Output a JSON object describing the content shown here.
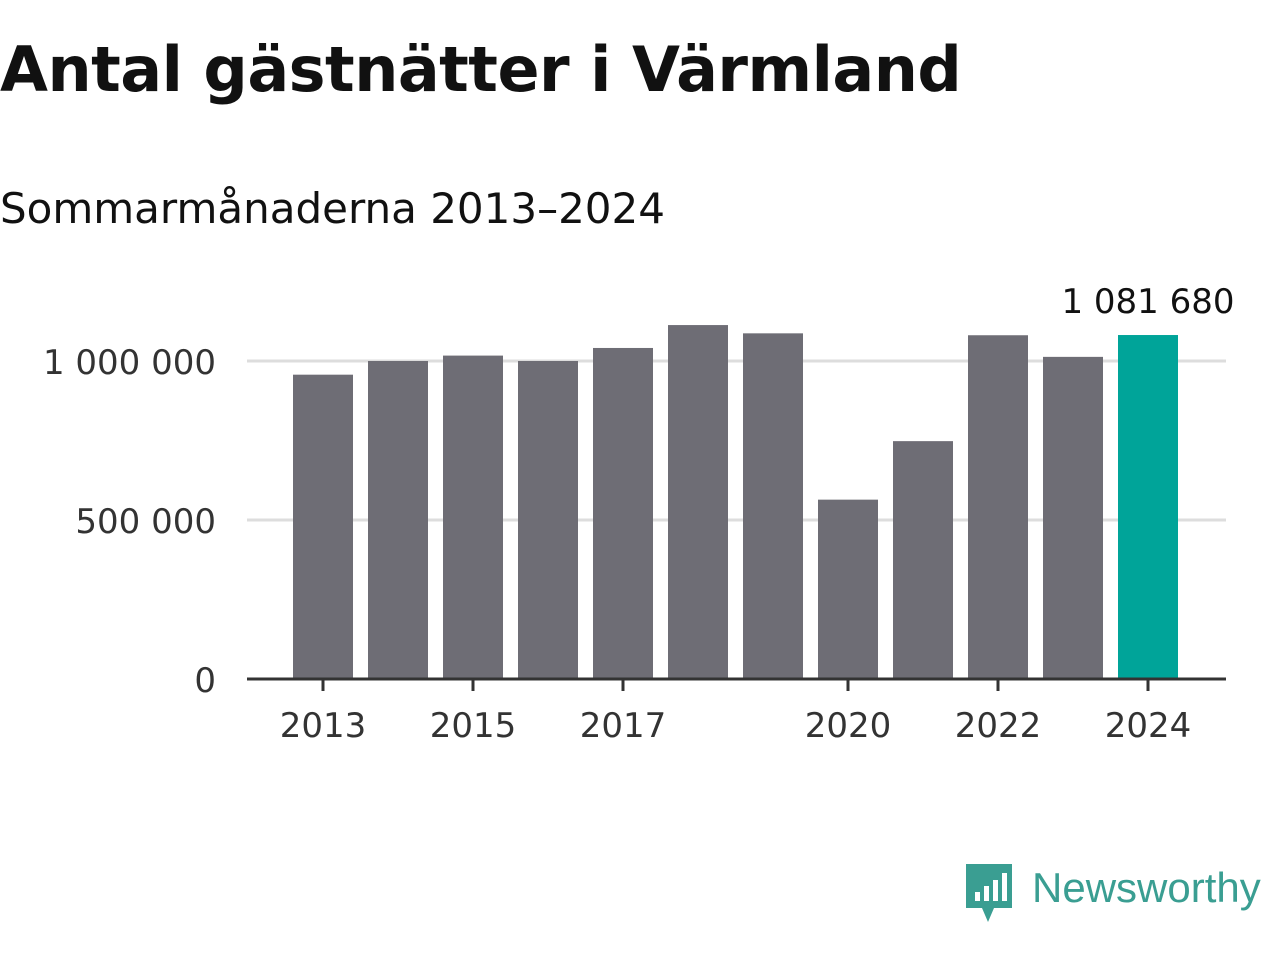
{
  "title": "Antal gästnätter i Värmland",
  "subtitle": "Sommarmånaderna 2013–2024",
  "brand": {
    "name": "Newsworthy",
    "icon": "newsworthy-logo-icon",
    "color": "#3a9e92"
  },
  "chart_data": {
    "type": "bar",
    "categories": [
      "2013",
      "2014",
      "2015",
      "2016",
      "2017",
      "2018",
      "2019",
      "2020",
      "2021",
      "2022",
      "2023",
      "2024"
    ],
    "values": [
      957000,
      1000000,
      1017000,
      1000000,
      1041000,
      1113000,
      1087000,
      564000,
      748000,
      1081000,
      1013000,
      1081680
    ],
    "highlight_index": 11,
    "highlight_label": "1 081 680",
    "colors": {
      "bar": "#6e6d75",
      "highlight": "#00a499",
      "grid": "#dddddd",
      "axis": "#333333",
      "text": "#333333"
    },
    "ylim": [
      0,
      1150000
    ],
    "yticks": [
      {
        "value": 0,
        "label": "0"
      },
      {
        "value": 500000,
        "label": "500 000"
      },
      {
        "value": 1000000,
        "label": "1 000 000"
      }
    ],
    "xticks": [
      "2013",
      "2015",
      "2017",
      "2020",
      "2022",
      "2024"
    ],
    "grid": true,
    "legend": "none",
    "xlabel": "",
    "ylabel": ""
  }
}
